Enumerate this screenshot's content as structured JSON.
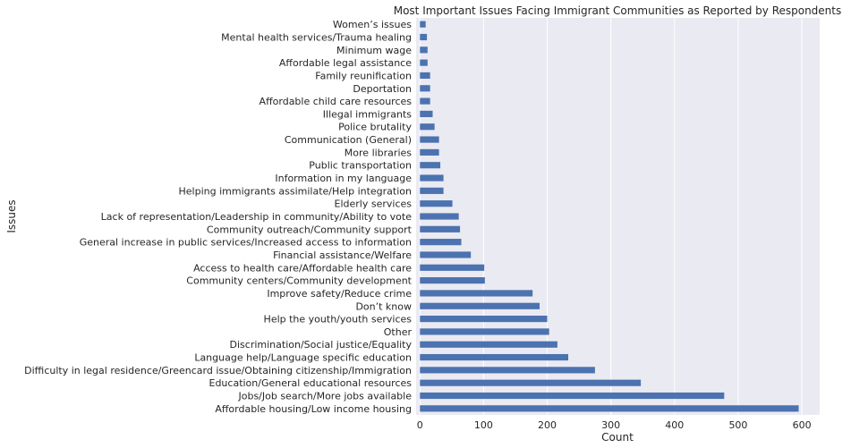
{
  "chart_data": {
    "type": "bar",
    "orientation": "horizontal",
    "title": "Most Important Issues Facing Immigrant Communities as Reported by Respondents",
    "xlabel": "Count",
    "ylabel": "Issues",
    "xlim": [
      -6,
      628
    ],
    "xticks": [
      0,
      100,
      200,
      300,
      400,
      500,
      600
    ],
    "grid": true,
    "bar_color": "#4c72b0",
    "background_color": "#eaeaf2",
    "categories": [
      "Affordable housing/Low income housing",
      "Jobs/Job search/More jobs available",
      "Education/General educational resources",
      "Difficulty in legal residence/Greencard issue/Obtaining citizenship/Immigration",
      "Language help/Language specific education",
      "Discrimination/Social justice/Equality",
      "Other",
      "Help the youth/youth services",
      "Don’t know",
      "Improve safety/Reduce crime",
      "Community centers/Community development",
      "Access to health care/Affordable health care",
      "Financial assistance/Welfare",
      "General increase in public services/Increased access to information",
      "Community outreach/Community support",
      "Lack of representation/Leadership in community/Ability to vote",
      "Elderly services",
      "Helping immigrants assimilate/Help integration",
      "Information in my language",
      "Public transportation",
      "More libraries",
      "Communication (General)",
      "Police brutality",
      "Illegal immigrants",
      "Affordable child care resources",
      "Deportation",
      "Family reunification",
      "Affordable legal assistance",
      "Minimum wage",
      "Mental health services/Trauma healing",
      "Women’s issues"
    ],
    "values": [
      595,
      478,
      347,
      275,
      233,
      216,
      203,
      200,
      188,
      177,
      102,
      101,
      80,
      65,
      63,
      61,
      51,
      37,
      37,
      32,
      30,
      30,
      23,
      20,
      16,
      16,
      16,
      12,
      12,
      11,
      9
    ]
  }
}
